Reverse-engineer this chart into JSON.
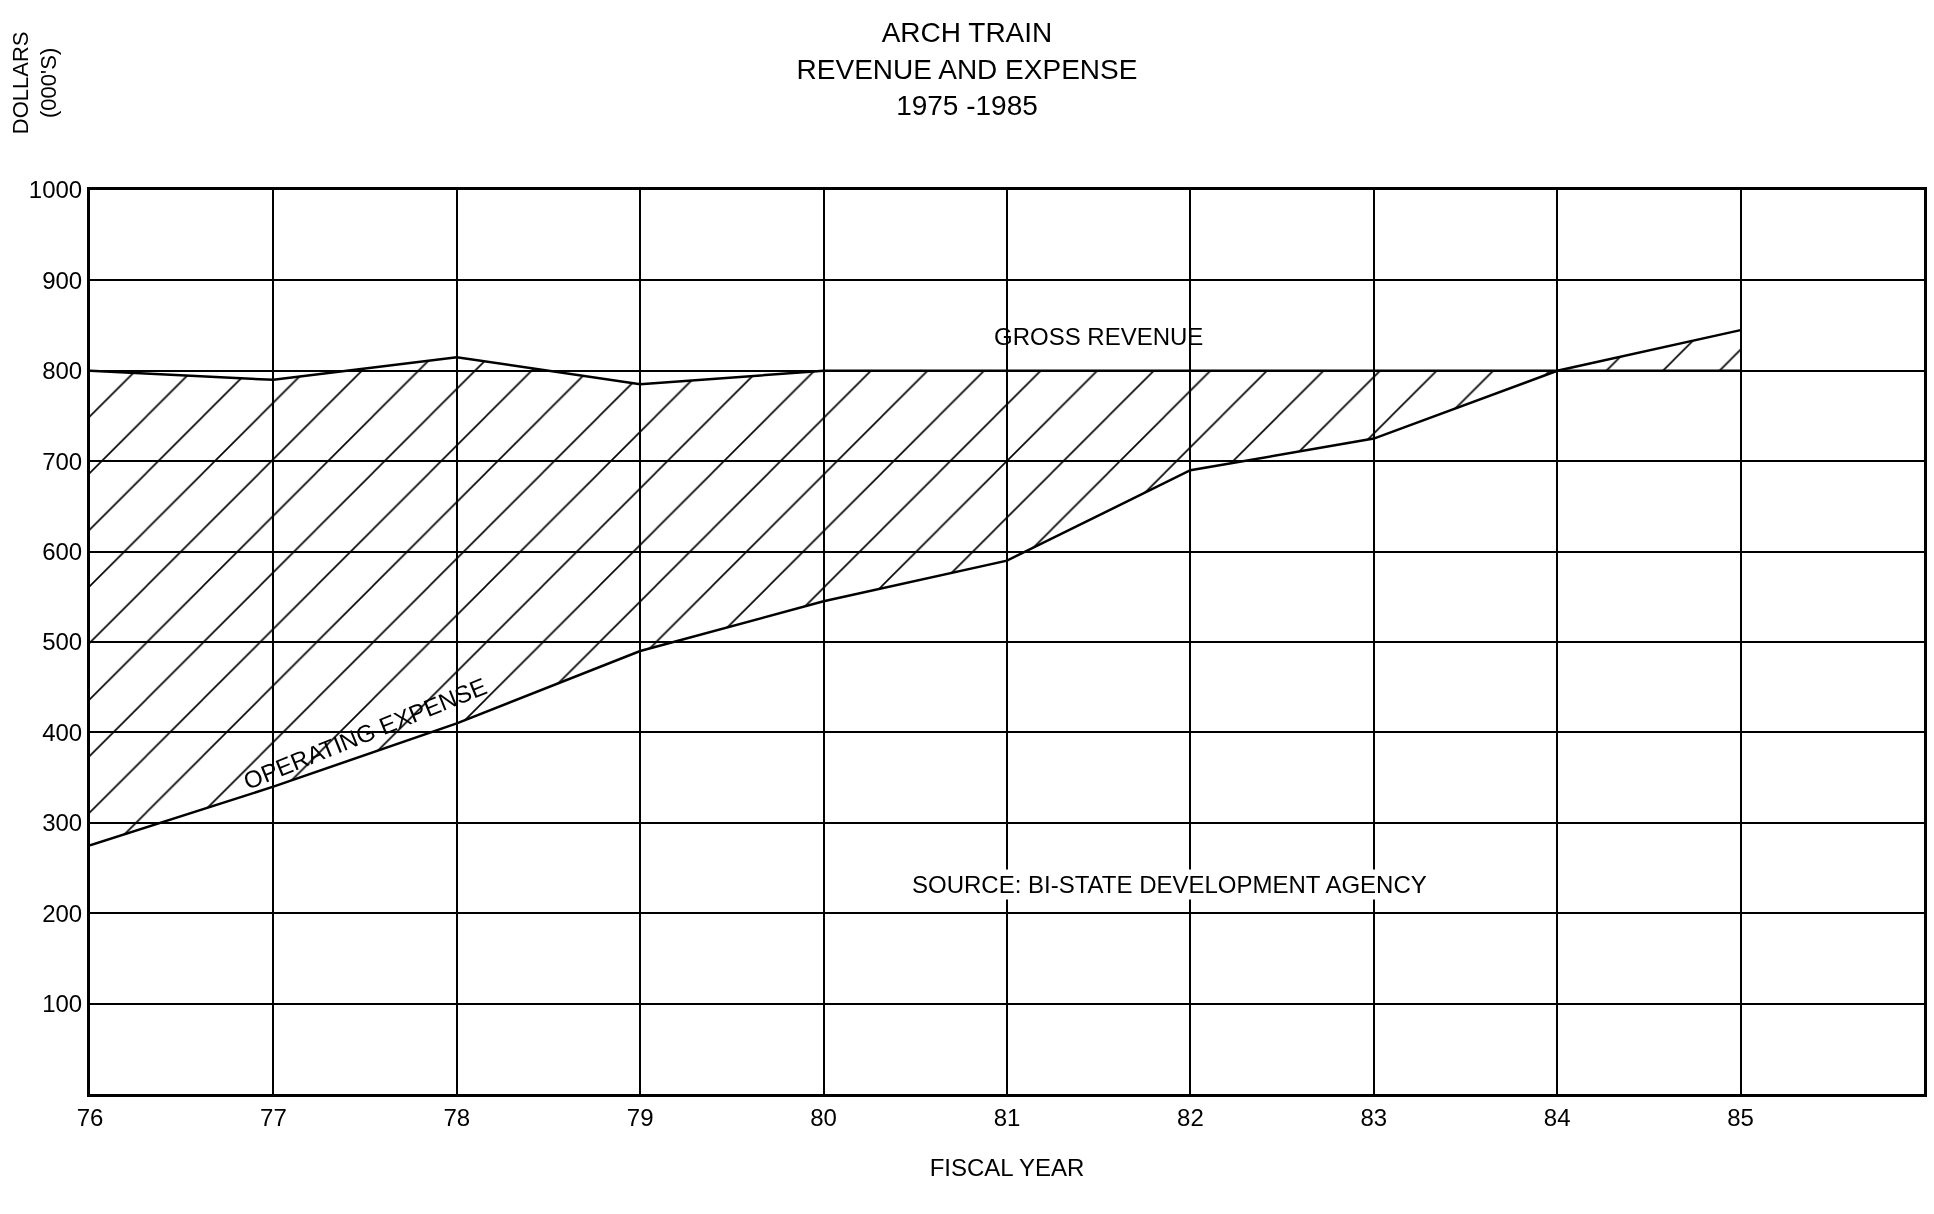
{
  "chart_data": {
    "type": "line",
    "title": "ARCH TRAIN\nREVENUE AND EXPENSE\n1975 -1985",
    "xlabel": "FISCAL YEAR",
    "ylabel": "DOLLARS\n(000'S)",
    "x": [
      76,
      77,
      78,
      79,
      80,
      81,
      82,
      83,
      84,
      85
    ],
    "series": [
      {
        "name": "OPERATING EXPENSE",
        "color": "#000000",
        "values": [
          275,
          340,
          410,
          490,
          545,
          590,
          690,
          725,
          800,
          845
        ]
      },
      {
        "name": "GROSS REVENUE",
        "color": "#000000",
        "values": [
          800,
          790,
          815,
          785,
          800,
          800,
          800,
          800,
          800,
          800
        ],
        "lower": [
          275,
          340,
          410,
          490,
          545,
          590,
          690,
          725,
          800,
          845
        ],
        "upper": [
          800,
          790,
          815,
          785,
          800,
          800,
          800,
          800,
          800,
          800
        ]
      }
    ],
    "xlim": [
      76,
      86
    ],
    "xticks": [
      76,
      77,
      78,
      79,
      80,
      81,
      82,
      83,
      84,
      85
    ],
    "ylim": [
      0,
      1000
    ],
    "yticks": [
      100,
      200,
      300,
      400,
      500,
      600,
      700,
      800,
      900,
      1000
    ],
    "grid": true,
    "legend": false,
    "annotations": [
      "SOURCE: BI-STATE DEVELOPMENT AGENCY"
    ]
  }
}
